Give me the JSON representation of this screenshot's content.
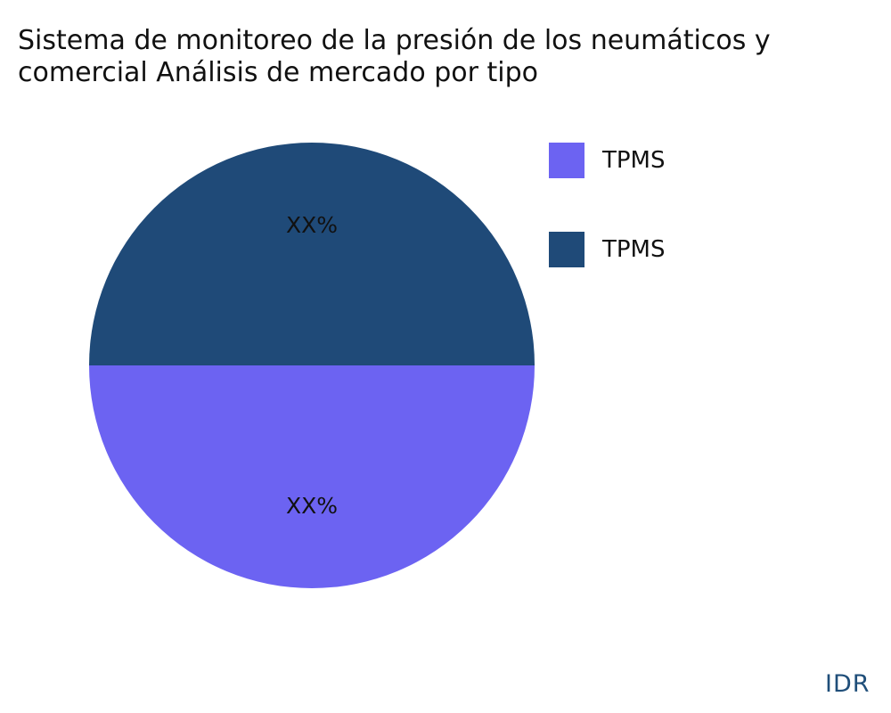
{
  "chart_data": {
    "type": "pie",
    "title_lines": [
      "Sistema de monitoreo de la presión de los neumáticos y",
      "comercial Análisis de mercado por tipo"
    ],
    "slices": [
      {
        "name": "TPMS",
        "value": 50,
        "label": "XX%",
        "color": "#6c63f2"
      },
      {
        "name": "TPMS",
        "value": 50,
        "label": "XX%",
        "color": "#1f4a78"
      }
    ],
    "legend_position": "right"
  },
  "watermark": "IDR"
}
